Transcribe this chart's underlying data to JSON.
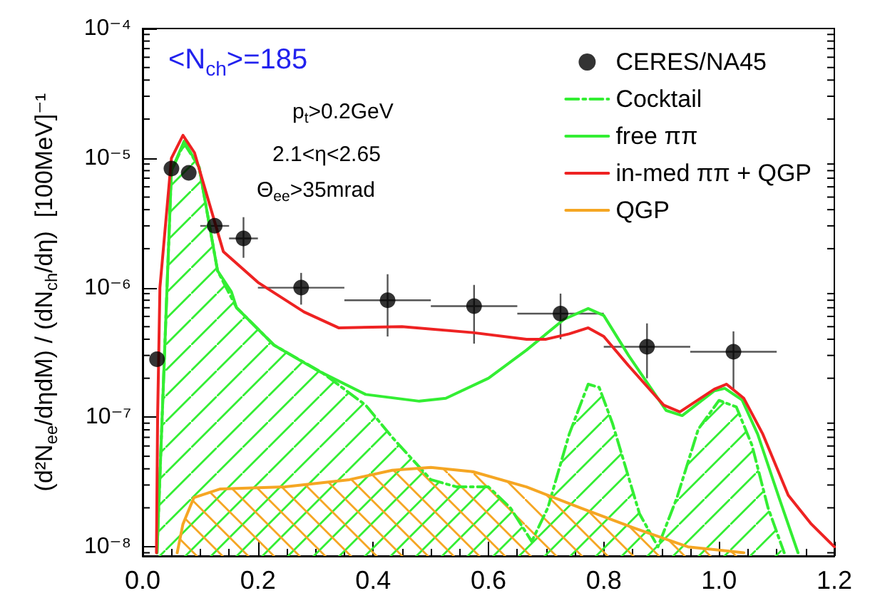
{
  "chart_data": {
    "type": "line",
    "ylabel": "(d²N$_{ee}$/dηdM) / (dN$_{ch}$/dη)  [100MeV]⁻¹",
    "annotations": [
      "<N$_{ch}$>=185",
      "p$_{t}$>0.2GeV",
      "2.1<η<2.65",
      "Θ$_{ee}$>35mrad"
    ],
    "log": "y",
    "legend": "top right",
    "grid": false,
    "xlim": [
      0,
      1.2
    ],
    "xticks": [
      {
        "value": 0,
        "label": "0.0"
      },
      {
        "value": 0.2,
        "label": "0.2"
      },
      {
        "value": 0.4,
        "label": "0.4"
      },
      {
        "value": 0.6,
        "label": "0.6"
      },
      {
        "value": 0.8,
        "label": "0.8"
      },
      {
        "value": 1,
        "label": "1.0"
      },
      {
        "value": 1.2,
        "label": "1.2"
      }
    ],
    "ylim": [
      8.5e-09,
      0.0001
    ],
    "yticks": [
      {
        "value": 1e-08,
        "label": "10⁻⁸"
      },
      {
        "value": 1e-07,
        "label": "10⁻⁷"
      },
      {
        "value": 1e-06,
        "label": "10⁻⁶"
      },
      {
        "value": 1e-05,
        "label": "10⁻⁵"
      },
      {
        "value": 0.0001,
        "label": "10⁻⁴"
      }
    ],
    "series": [
      {
        "name": "CERES/NA45",
        "type": "scatter",
        "marker": "circle",
        "color": "#000000",
        "x": [
          0.025,
          0.05,
          0.08,
          0.125,
          0.175,
          0.275,
          0.425,
          0.575,
          0.725,
          0.875,
          1.025
        ],
        "values": [
          2.8e-07,
          8.3e-06,
          7.7e-06,
          3e-06,
          2.4e-06,
          1e-06,
          8e-07,
          7.2e-07,
          6.3e-07,
          3.5e-07,
          3.2e-07
        ],
        "errors": [
          null,
          null,
          null,
          null,
          [
            1.7e-06,
            3.5e-06
          ],
          [
            7.4e-07,
            1.3e-06
          ],
          [
            4.2e-07,
            1.27e-06
          ],
          [
            3.7e-07,
            1.05e-06
          ],
          [
            4e-07,
            9e-07
          ],
          [
            2e-07,
            5.3e-07
          ],
          [
            1.6e-07,
            4.6e-07
          ]
        ],
        "xerrors": [
          null,
          null,
          null,
          0.025,
          0.025,
          0.075,
          0.075,
          0.075,
          0.075,
          0.075,
          0.075
        ]
      },
      {
        "name": "Cocktail",
        "type": "area",
        "line_style": "dashdot",
        "color": "#33ee33",
        "x": [
          0.025,
          0.05,
          0.072,
          0.098,
          0.13,
          0.163,
          0.228,
          0.312,
          0.387,
          0.433,
          0.5,
          0.545,
          0.6,
          0.638,
          0.675,
          0.703,
          0.74,
          0.773,
          0.792,
          0.815,
          0.862,
          0.894,
          0.927,
          0.964,
          1.0,
          1.03,
          1.057,
          1.085,
          1.113
        ],
        "values": [
          9e-09,
          8e-06,
          1.3e-05,
          8.5e-06,
          1.35e-06,
          7e-07,
          3.6e-07,
          2.2e-07,
          1.24e-07,
          7e-08,
          3.3e-08,
          2.9e-08,
          2.9e-08,
          2e-08,
          1.1e-08,
          2e-08,
          7.4e-08,
          1.8e-07,
          1.7e-07,
          9e-08,
          1.8e-08,
          1e-08,
          2.4e-08,
          8.1e-08,
          1.35e-07,
          1.2e-07,
          6.1e-08,
          2e-08,
          9e-09
        ]
      },
      {
        "name": "free ππ",
        "type": "line",
        "line_style": "solid",
        "color": "#33ee33",
        "x": [
          0.025,
          0.05,
          0.072,
          0.098,
          0.13,
          0.154,
          0.163,
          0.228,
          0.303,
          0.387,
          0.48,
          0.526,
          0.6,
          0.666,
          0.731,
          0.773,
          0.8,
          0.843,
          0.908,
          0.936,
          0.992,
          1.01,
          1.04,
          1.067,
          1.104,
          1.137
        ],
        "values": [
          9e-09,
          8e-06,
          1.35e-05,
          8.5e-06,
          1.35e-06,
          9.3e-07,
          7e-07,
          3.6e-07,
          2.3e-07,
          1.5e-07,
          1.33e-07,
          1.4e-07,
          2e-07,
          3.3e-07,
          5.7e-07,
          6.9e-07,
          6.1e-07,
          3e-07,
          1.13e-07,
          1.03e-07,
          1.6e-07,
          1.67e-07,
          1.36e-07,
          7.4e-08,
          2.4e-08,
          9e-09
        ]
      },
      {
        "name": "in-med ππ + QGP",
        "type": "line",
        "line_style": "solid",
        "color": "#ee2222",
        "x": [
          0.024,
          0.026,
          0.03,
          0.05,
          0.07,
          0.09,
          0.14,
          0.2,
          0.28,
          0.34,
          0.45,
          0.573,
          0.666,
          0.7,
          0.74,
          0.773,
          0.8,
          0.843,
          0.904,
          0.932,
          0.992,
          1.013,
          1.043,
          1.076,
          1.12,
          1.16,
          1.2
        ],
        "values": [
          9e-09,
          1e-07,
          1e-06,
          1e-05,
          1.5e-05,
          1.1e-05,
          1.9e-06,
          1.1e-06,
          6.5e-07,
          4.9e-07,
          5e-07,
          4.5e-07,
          4e-07,
          4e-07,
          4.4e-07,
          4.9e-07,
          4.2e-07,
          2.5e-07,
          1.24e-07,
          1.1e-07,
          1.65e-07,
          1.8e-07,
          1.4e-07,
          7.4e-08,
          2.5e-08,
          1.5e-08,
          1e-08
        ]
      },
      {
        "name": "QGP",
        "type": "area",
        "line_style": "solid",
        "color": "#f5a623",
        "x": [
          0.06,
          0.07,
          0.089,
          0.135,
          0.247,
          0.359,
          0.433,
          0.5,
          0.573,
          0.666,
          0.759,
          0.852,
          0.946,
          1.043
        ],
        "values": [
          9e-09,
          1.5e-08,
          2.4e-08,
          2.8e-08,
          2.9e-08,
          3.3e-08,
          3.9e-08,
          4.1e-08,
          3.8e-08,
          2.9e-08,
          2e-08,
          1.4e-08,
          1e-08,
          9e-09
        ]
      }
    ]
  }
}
